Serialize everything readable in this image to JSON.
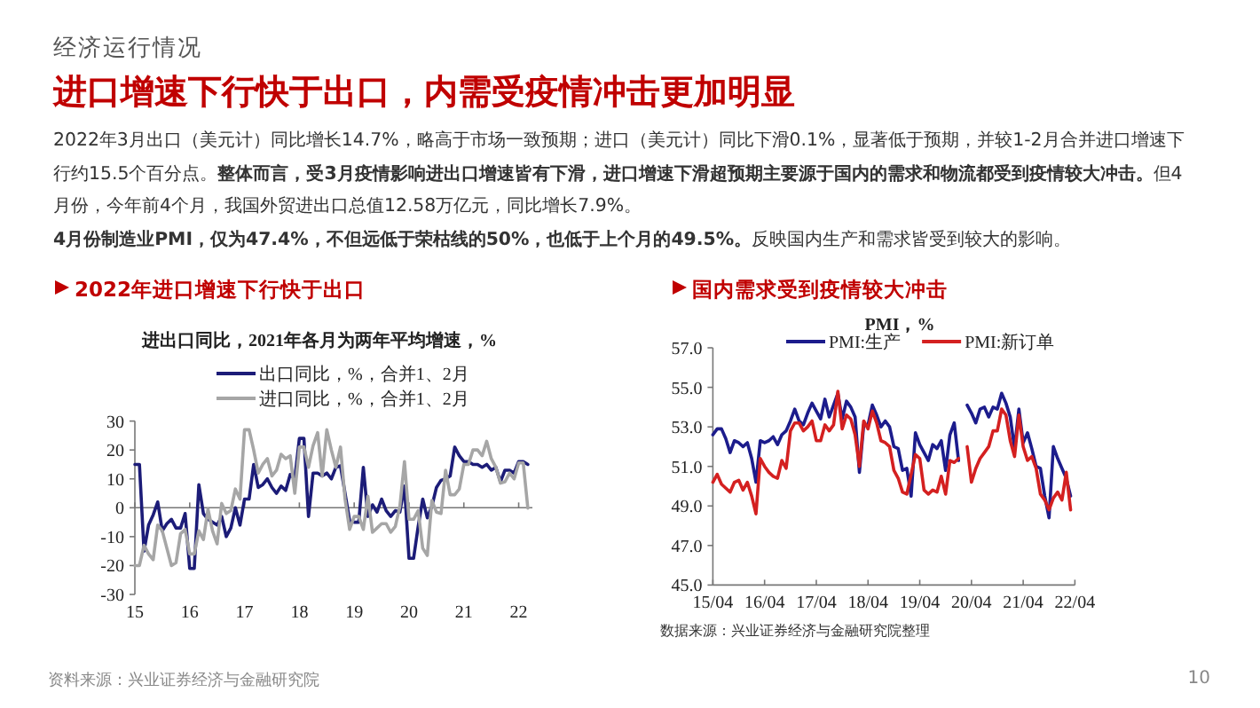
{
  "chart_data": [
    {
      "type": "other",
      "subtitle": "经济运行情况",
      "title": "进口增速下行快于出口，内需受疫情冲击更加明显",
      "annotations": [
        "2022年3月出口（美元计）同比增长14.7%，略高于市场一致预期；进口（美元计）同比下滑0.1%，显著低于预期，并较1-2月合并进口增速下行约15.5个百分点。**整体而言，受3月疫情影响进出口增速皆有下滑，进口增速下滑超预期主要源于国内的需求和物流都受到疫情较大冲击。**但4月份，今年前4个月，我国外贸进出口总值12.58万亿元，同比增长7.9%。",
        "**4月份制造业PMI，仅为47.4%，不但远低于荣枯线的50%，也低于上个月的49.5%。**反映国内生产和需求皆受到较大的影响。",
        "资料来源：兴业证券经济与金融研究院",
        "10"
      ]
    },
    {
      "type": "line",
      "title": "2022年进口增速下行快于出口",
      "subtitle": "进出口同比，2021年各月为两年平均增速，%",
      "legend": "top",
      "x": [
        "2015-01",
        "2015-02",
        "2015-03",
        "2015-04",
        "2015-05",
        "2015-06",
        "2015-07",
        "2015-08",
        "2015-09",
        "2015-10",
        "2015-11",
        "2015-12",
        "2016-01",
        "2016-02",
        "2016-03",
        "2016-04",
        "2016-05",
        "2016-06",
        "2016-07",
        "2016-08",
        "2016-09",
        "2016-10",
        "2016-11",
        "2016-12",
        "2017-01",
        "2017-02",
        "2017-03",
        "2017-04",
        "2017-05",
        "2017-06",
        "2017-07",
        "2017-08",
        "2017-09",
        "2017-10",
        "2017-11",
        "2017-12",
        "2018-01",
        "2018-02",
        "2018-03",
        "2018-04",
        "2018-05",
        "2018-06",
        "2018-07",
        "2018-08",
        "2018-09",
        "2018-10",
        "2018-11",
        "2018-12",
        "2019-01",
        "2019-02",
        "2019-03",
        "2019-04",
        "2019-05",
        "2019-06",
        "2019-07",
        "2019-08",
        "2019-09",
        "2019-10",
        "2019-11",
        "2019-12",
        "2020-01",
        "2020-02",
        "2020-03",
        "2020-04",
        "2020-05",
        "2020-06",
        "2020-07",
        "2020-08",
        "2020-09",
        "2020-10",
        "2020-11",
        "2020-12",
        "2021-01",
        "2021-02",
        "2021-03",
        "2021-04",
        "2021-05",
        "2021-06",
        "2021-07",
        "2021-08",
        "2021-09",
        "2021-10",
        "2021-11",
        "2021-12",
        "2022-01",
        "2022-02",
        "2022-03"
      ],
      "series": [
        {
          "name": "出口同比，%，合并1、2月",
          "color": "#1c1c78",
          "values": [
            15,
            15,
            -15,
            -6,
            -2.5,
            2,
            -8,
            -5.5,
            -4,
            -7,
            -7,
            -2,
            -21,
            -21,
            8,
            -2,
            -4,
            -5,
            -6,
            -3,
            -10,
            -7,
            0,
            -6,
            3,
            3,
            15,
            7,
            8,
            10,
            7,
            5,
            7.5,
            6,
            11.5,
            10,
            24,
            24,
            -3,
            12,
            12,
            11,
            12,
            10,
            14,
            14.5,
            5,
            -4.5,
            -5,
            -5,
            14,
            -3,
            1,
            -1.5,
            3,
            -1,
            -3,
            -1,
            -1.5,
            7.5,
            -17.5,
            -17.5,
            -6.5,
            3,
            -3.5,
            0.5,
            7,
            9.5,
            10,
            11,
            21,
            18,
            16,
            16,
            15,
            15,
            14,
            15,
            13,
            14,
            9,
            13,
            13,
            12,
            16,
            16,
            15
          ]
        },
        {
          "name": "进口同比，%，合并1、2月",
          "color": "#a6a6a6",
          "values": [
            -20,
            -20,
            -13,
            -16,
            -18,
            -6,
            -8,
            -14,
            -20,
            -19,
            -9,
            -7.5,
            -16,
            -16,
            -8,
            -11,
            -0.5,
            -8,
            -12.5,
            1.5,
            -2,
            -1,
            6.5,
            3,
            27,
            27,
            20,
            12,
            15,
            17,
            11,
            13,
            18.5,
            17,
            18,
            5,
            21,
            21,
            14,
            21.5,
            26,
            11,
            27,
            20,
            14,
            21,
            3,
            -7.5,
            -3,
            -3,
            -7.5,
            4,
            -8.5,
            -7,
            -5.5,
            -5.5,
            -8.5,
            -6.5,
            0.5,
            16,
            -4,
            -4,
            -1,
            -14,
            -16.5,
            2.5,
            -1.5,
            -2,
            13,
            4.5,
            4.5,
            6.5,
            15,
            15,
            20,
            20,
            18,
            23,
            17,
            14,
            8.5,
            9,
            12,
            10,
            15.5,
            15.5,
            -0.1
          ]
        }
      ],
      "xlim": [
        "2015-01",
        "2022-04"
      ],
      "xticks": [
        {
          "value": "2015-01",
          "label": "15"
        },
        {
          "value": "2016-01",
          "label": "16"
        },
        {
          "value": "2017-01",
          "label": "17"
        },
        {
          "value": "2018-01",
          "label": "18"
        },
        {
          "value": "2019-01",
          "label": "19"
        },
        {
          "value": "2020-01",
          "label": "20"
        },
        {
          "value": "2021-01",
          "label": "21"
        },
        {
          "value": "2022-01",
          "label": "22"
        }
      ],
      "ylim": [
        -30,
        30
      ],
      "yticks": [
        -30,
        -20,
        -10,
        0,
        10,
        20,
        30
      ]
    },
    {
      "type": "line",
      "title": "国内需求受到疫情较大冲击",
      "subtitle": "PMI，%",
      "legend": "top",
      "annotations": [
        "数据来源：兴业证券经济与金融研究院整理"
      ],
      "x": [
        "2015-04",
        "2015-05",
        "2015-06",
        "2015-07",
        "2015-08",
        "2015-09",
        "2015-10",
        "2015-11",
        "2015-12",
        "2016-01",
        "2016-02",
        "2016-03",
        "2016-04",
        "2016-05",
        "2016-06",
        "2016-07",
        "2016-08",
        "2016-09",
        "2016-10",
        "2016-11",
        "2016-12",
        "2017-01",
        "2017-02",
        "2017-03",
        "2017-04",
        "2017-05",
        "2017-06",
        "2017-07",
        "2017-08",
        "2017-09",
        "2017-10",
        "2017-11",
        "2017-12",
        "2018-01",
        "2018-02",
        "2018-03",
        "2018-04",
        "2018-05",
        "2018-06",
        "2018-07",
        "2018-08",
        "2018-09",
        "2018-10",
        "2018-11",
        "2018-12",
        "2019-01",
        "2019-02",
        "2019-03",
        "2019-04",
        "2019-05",
        "2019-06",
        "2019-07",
        "2019-08",
        "2019-09",
        "2019-10",
        "2019-11",
        "2019-12",
        "2020-01",
        "2020-02",
        "2020-03",
        "2020-04",
        "2020-05",
        "2020-06",
        "2020-07",
        "2020-08",
        "2020-09",
        "2020-10",
        "2020-11",
        "2020-12",
        "2021-01",
        "2021-02",
        "2021-03",
        "2021-04",
        "2021-05",
        "2021-06",
        "2021-07",
        "2021-08",
        "2021-09",
        "2021-10",
        "2021-11",
        "2021-12",
        "2022-01",
        "2022-02",
        "2022-03"
      ],
      "series": [
        {
          "name": "PMI:生产",
          "color": "#1c1c8c",
          "values": [
            52.6,
            52.9,
            52.9,
            52.4,
            51.7,
            52.3,
            52.2,
            52.0,
            52.2,
            51.4,
            50.2,
            52.3,
            52.2,
            52.3,
            52.5,
            52.1,
            52.6,
            52.8,
            53.3,
            53.9,
            53.3,
            53.1,
            53.7,
            54.2,
            53.8,
            53.4,
            54.4,
            53.5,
            54.1,
            54.7,
            53.4,
            54.3,
            54.0,
            53.5,
            50.7,
            53.1,
            53.1,
            54.1,
            53.6,
            53.0,
            53.3,
            53.0,
            52.0,
            51.9,
            50.8,
            50.9,
            49.5,
            52.7,
            52.1,
            51.7,
            51.3,
            52.1,
            51.9,
            52.3,
            50.8,
            52.6,
            53.2,
            51.3,
            null,
            54.1,
            53.7,
            53.2,
            53.9,
            54.0,
            53.5,
            54.0,
            53.9,
            54.7,
            54.2,
            53.5,
            51.9,
            53.9,
            52.2,
            52.7,
            51.9,
            51.0,
            50.9,
            49.5,
            48.4,
            52.0,
            51.4,
            50.9,
            50.4,
            49.5
          ]
        },
        {
          "name": "PMI:新订单",
          "color": "#d42020",
          "values": [
            50.2,
            50.6,
            50.1,
            49.9,
            49.7,
            50.2,
            50.3,
            49.8,
            50.2,
            49.5,
            48.6,
            51.4,
            51.0,
            50.7,
            50.5,
            50.4,
            51.3,
            50.9,
            52.8,
            53.2,
            53.2,
            52.8,
            53.0,
            53.3,
            52.3,
            52.3,
            53.1,
            52.8,
            53.1,
            54.8,
            52.9,
            53.6,
            53.4,
            52.6,
            51.0,
            53.3,
            52.9,
            53.8,
            53.2,
            52.3,
            52.2,
            52.0,
            50.8,
            50.4,
            49.7,
            49.6,
            50.6,
            51.6,
            51.4,
            49.8,
            49.6,
            49.8,
            49.7,
            50.5,
            49.6,
            51.3,
            51.2,
            51.4,
            null,
            52.0,
            50.2,
            50.9,
            51.4,
            51.7,
            52.0,
            52.8,
            52.8,
            53.9,
            53.6,
            52.3,
            51.5,
            53.6,
            52.0,
            51.3,
            51.5,
            50.9,
            49.6,
            49.3,
            48.8,
            49.4,
            49.7,
            49.3,
            50.7,
            48.8
          ]
        }
      ],
      "xlim": [
        "2015-04",
        "2022-04"
      ],
      "xticks": [
        {
          "value": "2015-04",
          "label": "15/04"
        },
        {
          "value": "2016-04",
          "label": "16/04"
        },
        {
          "value": "2017-04",
          "label": "17/04"
        },
        {
          "value": "2018-04",
          "label": "18/04"
        },
        {
          "value": "2019-04",
          "label": "19/04"
        },
        {
          "value": "2020-04",
          "label": "20/04"
        },
        {
          "value": "2021-04",
          "label": "21/04"
        },
        {
          "value": "2022-04",
          "label": "22/04"
        }
      ],
      "ylim": [
        45,
        57
      ],
      "yticks": [
        {
          "value": 45,
          "label": "45.0"
        },
        {
          "value": 47,
          "label": "47.0"
        },
        {
          "value": 49,
          "label": "49.0"
        },
        {
          "value": 51,
          "label": "51.0"
        },
        {
          "value": 53,
          "label": "53.0"
        },
        {
          "value": 55,
          "label": "55.0"
        },
        {
          "value": 57,
          "label": "57.0"
        }
      ]
    }
  ]
}
